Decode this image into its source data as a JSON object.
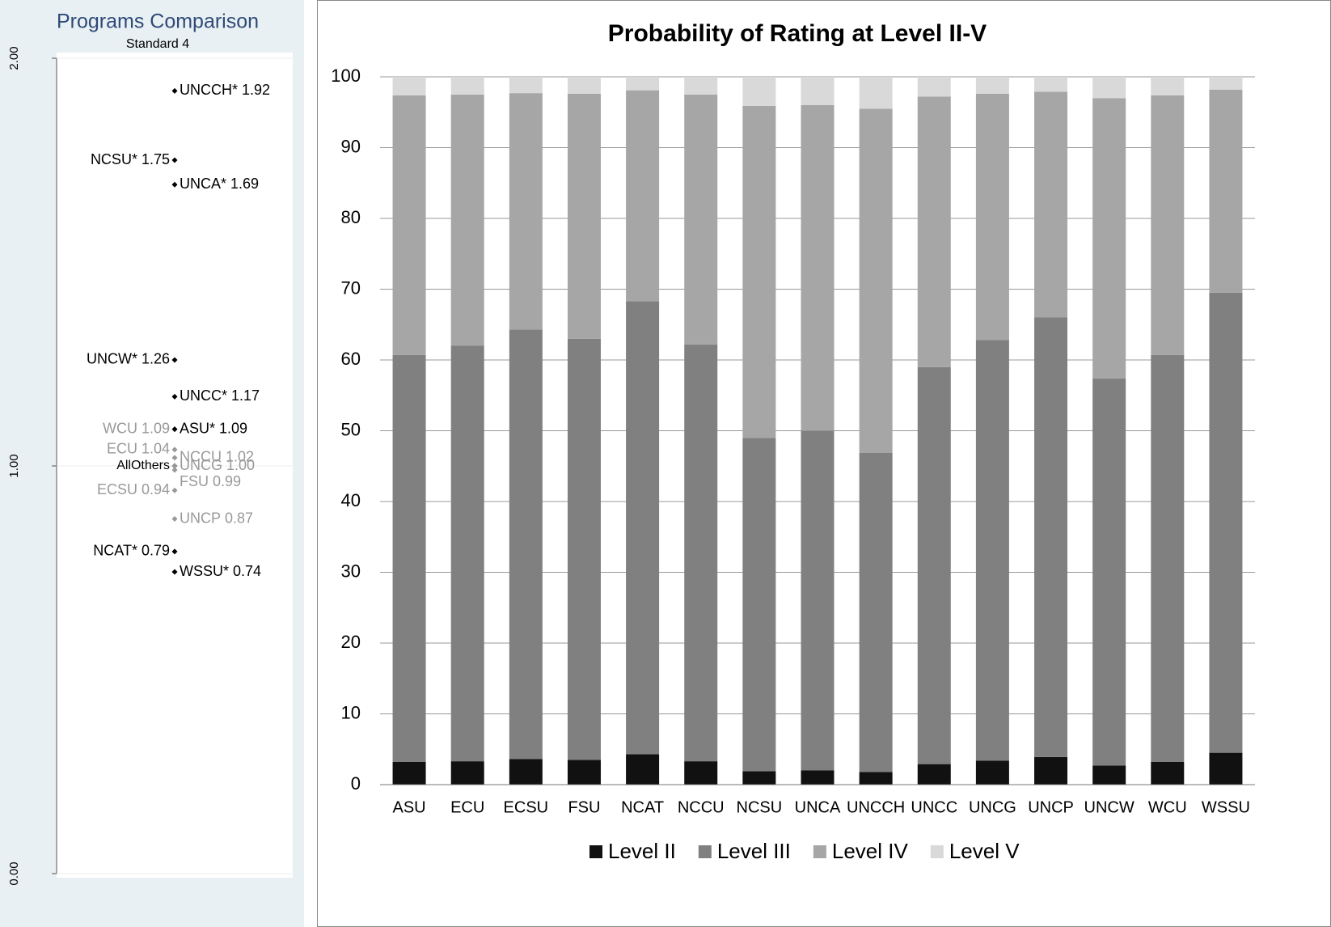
{
  "chart_data": [
    {
      "type": "dot",
      "title": "Programs Comparison",
      "subtitle": "Standard 4",
      "names": [
        "UNCCH*",
        "NCSU*",
        "UNCA*",
        "UNCW*",
        "UNCC*",
        "WCU",
        "ASU*",
        "ECU",
        "NCCU",
        "AllOthers",
        "UNCG",
        "FSU",
        "ECSU",
        "UNCP",
        "NCAT*",
        "WSSU*"
      ],
      "values": [
        1.92,
        1.75,
        1.69,
        1.26,
        1.17,
        1.09,
        1.09,
        1.04,
        1.02,
        1.0,
        1.0,
        0.99,
        0.94,
        0.87,
        0.79,
        0.74
      ],
      "value_labels": [
        "1.92",
        "1.75",
        "1.69",
        "1.26",
        "1.17",
        "1.09",
        "1.09",
        "1.04",
        "1.02",
        null,
        "1.00",
        "0.99",
        "0.94",
        "0.87",
        "0.79",
        "0.74"
      ],
      "colors": [
        "#000000",
        "#000000",
        "#000000",
        "#000000",
        "#000000",
        "#999999",
        "#000000",
        "#999999",
        "#999999",
        "#000000",
        "#999999",
        "#999999",
        "#999999",
        "#999999",
        "#000000",
        "#000000"
      ],
      "ylim": [
        0,
        2
      ],
      "yticks": [
        {
          "value": 0,
          "label": "0.00"
        },
        {
          "value": 1,
          "label": "1.00"
        },
        {
          "value": 2,
          "label": "2.00"
        }
      ]
    },
    {
      "type": "bar",
      "stacked": true,
      "title": "Probability of Rating at Level II-V",
      "categories": [
        "ASU",
        "ECU",
        "ECSU",
        "FSU",
        "NCAT",
        "NCCU",
        "NCSU",
        "UNCA",
        "UNCCH",
        "UNCC",
        "UNCG",
        "UNCP",
        "UNCW",
        "WCU",
        "WSSU"
      ],
      "series": [
        {
          "name": "Level II",
          "color": "#111111",
          "values": [
            3.2,
            3.3,
            3.6,
            3.5,
            4.3,
            3.3,
            1.9,
            2.0,
            1.8,
            2.9,
            3.4,
            3.9,
            2.7,
            3.2,
            4.5
          ]
        },
        {
          "name": "Level III",
          "color": "#808080",
          "values": [
            57.5,
            58.7,
            60.7,
            59.5,
            64.0,
            58.9,
            47.1,
            48.0,
            45.1,
            56.1,
            59.4,
            62.1,
            54.7,
            57.5,
            65.0
          ]
        },
        {
          "name": "Level IV",
          "color": "#a6a6a6",
          "values": [
            36.7,
            35.5,
            33.4,
            34.6,
            29.8,
            35.3,
            46.9,
            46.0,
            48.6,
            38.2,
            34.8,
            31.9,
            39.6,
            36.7,
            28.7
          ]
        },
        {
          "name": "Level V",
          "color": "#d9d9d9",
          "values": [
            2.6,
            2.5,
            2.3,
            2.4,
            1.9,
            2.5,
            4.1,
            4.0,
            4.5,
            2.8,
            2.4,
            2.1,
            3.0,
            2.6,
            1.8
          ]
        }
      ],
      "ylim": [
        0,
        100
      ],
      "yticks": [
        0,
        10,
        20,
        30,
        40,
        50,
        60,
        70,
        80,
        90,
        100
      ],
      "grid": true,
      "legend": "bottom"
    }
  ]
}
